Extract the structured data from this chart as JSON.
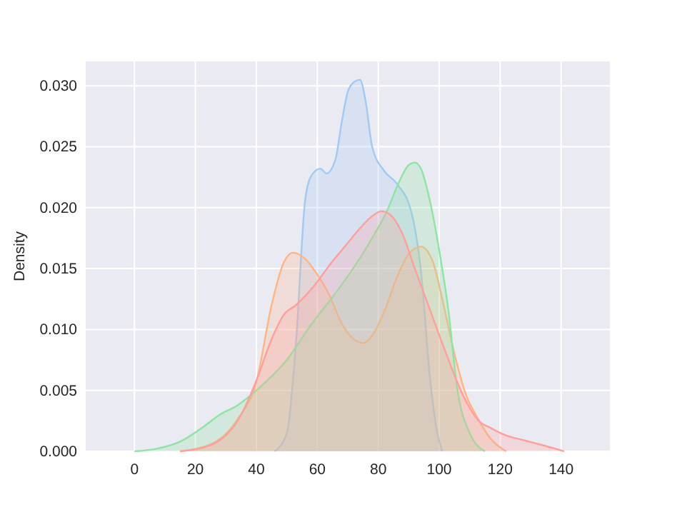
{
  "chart_data": {
    "type": "area",
    "ylabel": "Density",
    "xlim": [
      -16,
      156
    ],
    "xticks": [
      0,
      20,
      40,
      60,
      80,
      100,
      120,
      140
    ],
    "ylim": [
      0,
      0.032
    ],
    "yticks": [
      {
        "value": 0,
        "label": "0.000"
      },
      {
        "value": 0.005,
        "label": "0.005"
      },
      {
        "value": 0.01,
        "label": "0.010"
      },
      {
        "value": 0.015,
        "label": "0.015"
      },
      {
        "value": 0.02,
        "label": "0.020"
      },
      {
        "value": 0.025,
        "label": "0.025"
      },
      {
        "value": 0.03,
        "label": "0.030"
      }
    ],
    "grid": true,
    "series": [
      {
        "color": "#a1c9f4",
        "x": [
          46,
          50,
          53,
          56,
          58,
          61,
          63,
          66,
          68,
          70,
          72,
          74,
          76,
          78,
          82,
          86,
          91,
          94,
          97,
          99,
          101
        ],
        "values": [
          0,
          0.0015,
          0.0089,
          0.0206,
          0.0226,
          0.0232,
          0.0228,
          0.024,
          0.027,
          0.0295,
          0.0303,
          0.0305,
          0.0285,
          0.025,
          0.023,
          0.022,
          0.0195,
          0.0148,
          0.006,
          0.002,
          0
        ]
      },
      {
        "color": "#ffb482",
        "x": [
          15,
          26,
          34,
          40,
          45,
          49,
          52,
          56,
          60,
          64,
          68,
          72,
          75,
          78,
          82,
          86,
          90,
          94,
          98,
          101,
          105,
          109,
          112,
          117,
          122
        ],
        "values": [
          0,
          0.0007,
          0.0027,
          0.0057,
          0.012,
          0.0155,
          0.0163,
          0.0158,
          0.0145,
          0.0128,
          0.0105,
          0.0092,
          0.0089,
          0.0095,
          0.0115,
          0.0142,
          0.0162,
          0.0168,
          0.0155,
          0.0125,
          0.008,
          0.0045,
          0.003,
          0.001,
          0
        ]
      },
      {
        "color": "#8de5a1",
        "x": [
          0,
          7,
          15,
          22,
          28,
          34,
          40,
          50,
          58,
          66,
          72,
          78,
          83,
          87,
          90,
          92,
          94,
          97,
          100,
          103,
          106,
          110,
          115
        ],
        "values": [
          0,
          0.0002,
          0.0008,
          0.0019,
          0.003,
          0.0038,
          0.005,
          0.0075,
          0.0104,
          0.013,
          0.0151,
          0.0175,
          0.0198,
          0.0222,
          0.0235,
          0.0237,
          0.0232,
          0.0205,
          0.0165,
          0.0116,
          0.005,
          0.0015,
          0
        ]
      },
      {
        "color": "#ff9f9b",
        "x": [
          15,
          25,
          35,
          40,
          45,
          49,
          53,
          59,
          65,
          69,
          74,
          78,
          81,
          84,
          88,
          92,
          97,
          102,
          108,
          113,
          117,
          122,
          128,
          134,
          141
        ],
        "values": [
          0,
          0.0005,
          0.003,
          0.0058,
          0.0092,
          0.0112,
          0.012,
          0.0136,
          0.0156,
          0.0168,
          0.0183,
          0.0193,
          0.0197,
          0.0194,
          0.0178,
          0.015,
          0.0116,
          0.0082,
          0.0045,
          0.0025,
          0.0019,
          0.0013,
          0.0009,
          0.0005,
          0
        ]
      }
    ]
  }
}
